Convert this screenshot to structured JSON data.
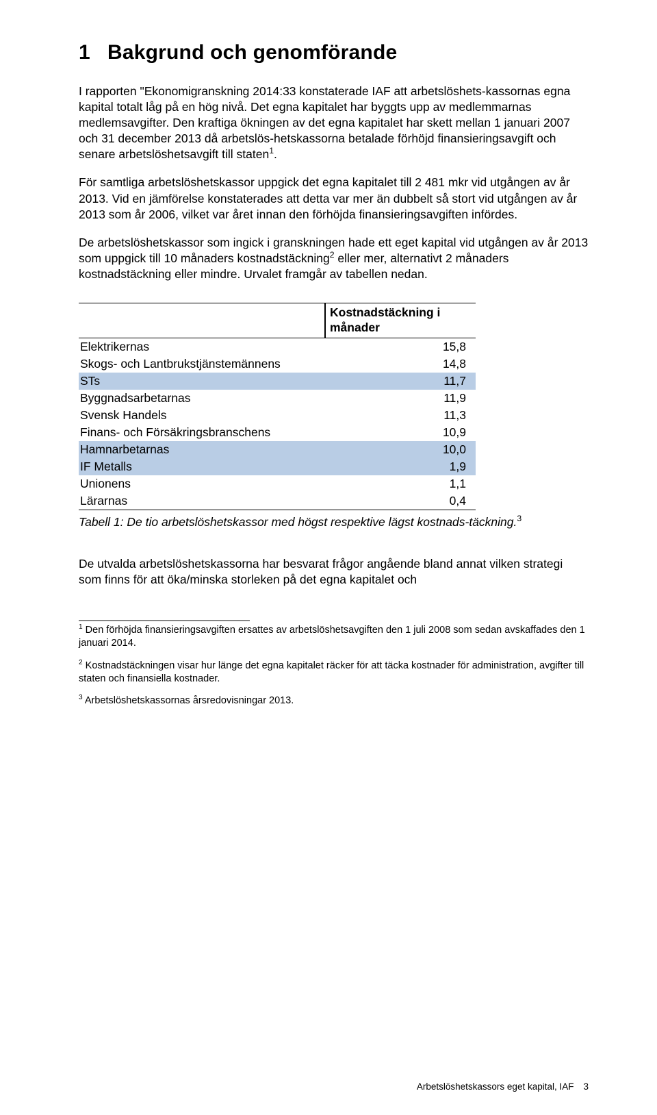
{
  "heading": {
    "number": "1",
    "title": "Bakgrund och genomförande"
  },
  "paragraphs": {
    "p1": "I rapporten \"Ekonomigranskning 2014:33 konstaterade IAF att arbetslöshets-kassornas egna kapital totalt låg på en hög nivå. Det egna kapitalet har byggts upp av medlemmarnas medlemsavgifter. Den kraftiga ökningen av det egna kapitalet har skett mellan 1 januari 2007 och 31 december 2013 då arbetslös-hetskassorna betalade förhöjd finansieringsavgift och senare arbetslöshetsavgift till staten",
    "p1_sup": "1",
    "p1_tail": ".",
    "p2": "För samtliga arbetslöshetskassor uppgick det egna kapitalet till 2 481 mkr vid utgången av år 2013. Vid en jämförelse konstaterades att detta var mer än dubbelt så stort vid utgången av år 2013 som år 2006, vilket var året innan den förhöjda finansieringsavgiften infördes.",
    "p3a": "De arbetslöshetskassor som ingick i granskningen hade ett eget kapital vid utgången av år 2013 som uppgick till 10 månaders kostnadstäckning",
    "p3_sup": "2",
    "p3b": " eller mer, alternativt 2 månaders kostnadstäckning eller mindre. Urvalet framgår av tabellen nedan.",
    "p4": "De utvalda arbetslöshetskassorna har besvarat frågor angående bland annat vilken strategi som finns för att öka/minska storleken på det egna kapitalet och"
  },
  "table": {
    "header_value": "Kostnadstäckning i månader",
    "highlight_color": "#b9cde5",
    "rows": [
      {
        "name": "Elektrikernas",
        "value": "15,8",
        "hl": false
      },
      {
        "name": "Skogs- och Lantbrukstjänstemännens",
        "value": "14,8",
        "hl": false
      },
      {
        "name": "STs",
        "value": "11,7",
        "hl": true
      },
      {
        "name": "Byggnadsarbetarnas",
        "value": "11,9",
        "hl": false
      },
      {
        "name": "Svensk Handels",
        "value": "11,3",
        "hl": false
      },
      {
        "name": "Finans- och Försäkringsbranschens",
        "value": "10,9",
        "hl": false
      },
      {
        "name": "Hamnarbetarnas",
        "value": "10,0",
        "hl": true
      },
      {
        "name": "IF Metalls",
        "value": "1,9",
        "hl": true
      },
      {
        "name": "Unionens",
        "value": "1,1",
        "hl": false
      },
      {
        "name": "Lärarnas",
        "value": "0,4",
        "hl": false
      }
    ]
  },
  "caption": {
    "lead": "Tabell 1: De tio arbetslöshetskassor med högst respektive lägst kostnads-täckning.",
    "sup": "3"
  },
  "footnotes": {
    "f1_sup": "1",
    "f1": " Den förhöjda finansieringsavgiften ersattes av arbetslöshetsavgiften den 1 juli 2008 som sedan avskaffades den 1 januari 2014.",
    "f2_sup": "2",
    "f2": " Kostnadstäckningen visar hur länge det egna kapitalet räcker för att täcka kostnader för administration, avgifter till staten och finansiella kostnader.",
    "f3_sup": "3",
    "f3": " Arbetslöshetskassornas årsredovisningar 2013."
  },
  "footer": {
    "doc": "Arbetslöshetskassors eget kapital, IAF",
    "page": "3"
  }
}
